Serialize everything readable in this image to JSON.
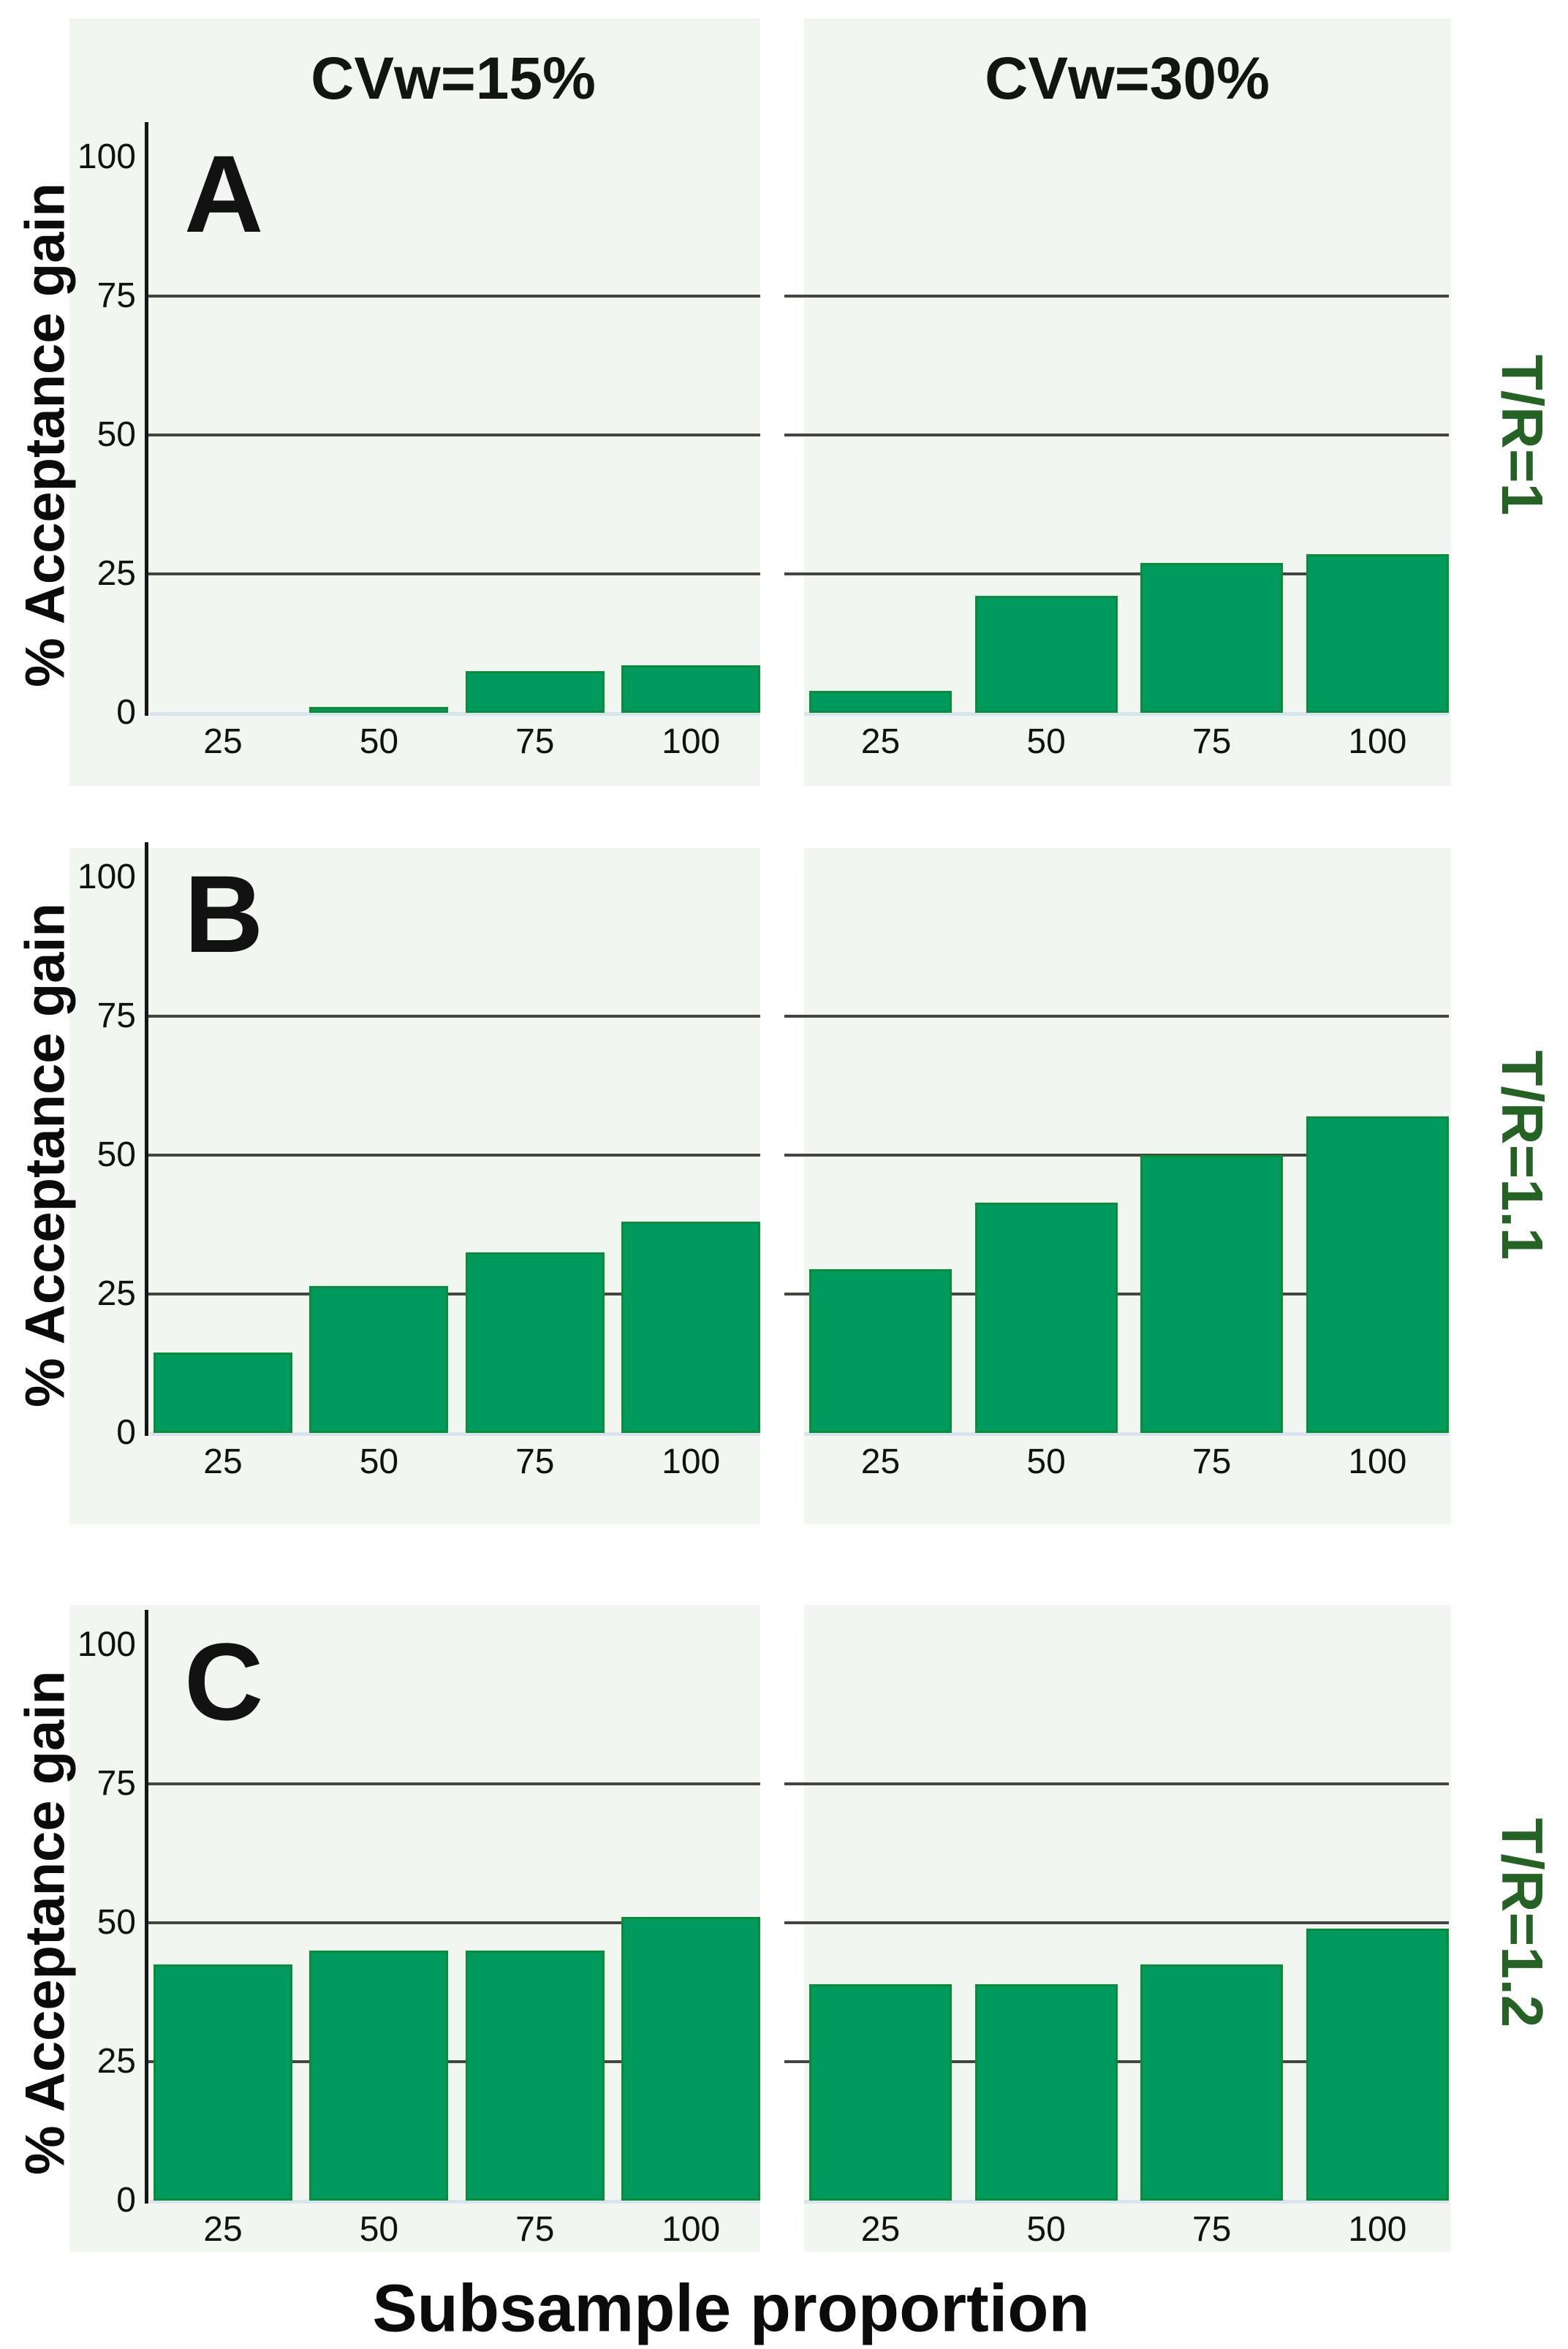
{
  "chart_data": {
    "type": "bar",
    "xlabel": "Subsample proportion",
    "ylabel": "% Acceptance gain",
    "ylim": [
      0,
      100
    ],
    "ytick_values": [
      0,
      25,
      50,
      75,
      100
    ],
    "gridline_values": [
      25,
      50,
      75
    ],
    "categories": [
      "25",
      "50",
      "75",
      "100"
    ],
    "columns": [
      "CVw=15%",
      "CVw=30%"
    ],
    "legend": "none",
    "grid": "horizontal",
    "rows": [
      {
        "panel": "A",
        "row_label": "T/R=1",
        "series": [
          {
            "name": "CVw=15%",
            "values": [
              0,
              1,
              7.5,
              8.5
            ]
          },
          {
            "name": "CVw=30%",
            "values": [
              4,
              21,
              27,
              28.5
            ]
          }
        ]
      },
      {
        "panel": "B",
        "row_label": "T/R=1.1",
        "series": [
          {
            "name": "CVw=15%",
            "values": [
              14.5,
              26.5,
              32.5,
              38
            ]
          },
          {
            "name": "CVw=30%",
            "values": [
              29.5,
              41.5,
              50,
              57
            ]
          }
        ]
      },
      {
        "panel": "C",
        "row_label": "T/R=1.2",
        "series": [
          {
            "name": "CVw=15%",
            "values": [
              42.5,
              45,
              45,
              51
            ]
          },
          {
            "name": "CVw=30%",
            "values": [
              39,
              39,
              42.5,
              49
            ]
          }
        ]
      }
    ],
    "colors": {
      "bar_fill": "#019a5e",
      "bar_border": "#0b8c39",
      "panel_background": "#f1f7f0",
      "gridline": "#45453f",
      "axis": "#161616",
      "baseline": "#d8e4f0",
      "row_label": "#246323",
      "text": "#111111"
    }
  }
}
